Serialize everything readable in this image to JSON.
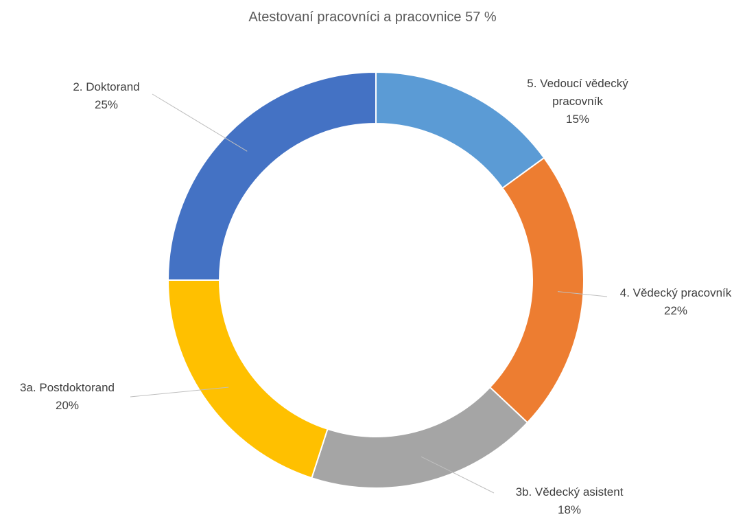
{
  "chart_data": {
    "type": "donut",
    "title": "Atestovaní pracovníci a pracovnice 57 %",
    "categories": [
      "5. Vedoucí vědecký pracovník",
      "4. Vědecký pracovník",
      "3b. Vědecký asistent",
      "3a. Postdoktorand",
      "2. Doktorand"
    ],
    "values": [
      15,
      22,
      18,
      20,
      25
    ],
    "value_labels": [
      "15%",
      "22%",
      "18%",
      "20%",
      "25%"
    ],
    "colors": [
      "#5b9bd5",
      "#ed7d31",
      "#a5a5a5",
      "#ffc000",
      "#4472c4"
    ]
  }
}
